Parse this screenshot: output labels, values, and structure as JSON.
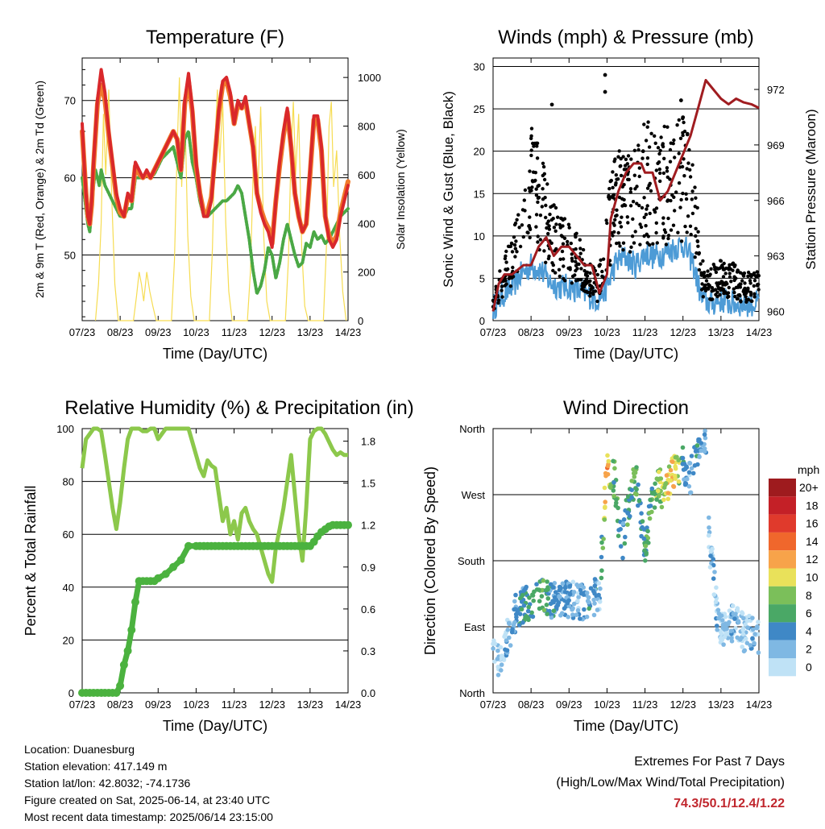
{
  "xticks": [
    "07/23",
    "08/23",
    "09/23",
    "10/23",
    "11/23",
    "12/23",
    "13/23",
    "14/23"
  ],
  "xlabel": "Time (Day/UTC)",
  "colors": {
    "temp_2m": "#d9282b",
    "temp_9m": "#f07a2b",
    "dewpoint": "#4aa845",
    "solar": "#f6dc52",
    "wind": "#4d9bd6",
    "gust": "#000000",
    "pressure": "#a01c20",
    "rh": "#8cc84b",
    "precip": "#4bb23f",
    "extremes": "#c0262d"
  },
  "footer": {
    "location": "Location: Duanesburg",
    "elevation": "Station elevation: 417.149 m",
    "latlon": "Station lat/lon: 42.8032; -74.1736",
    "created": "Figure created on Sat, 2025-06-14, at 23:40 UTC",
    "recent": "Most recent data timestamp: 2025/06/14 23:15:00"
  },
  "extremes": {
    "title": "Extremes For Past 7 Days",
    "subtitle": "(High/Low/Max Wind/Total Precipitation)",
    "values": "74.3/50.1/12.4/1.22"
  },
  "chart_data": [
    {
      "type": "line",
      "title": "Temperature (F)",
      "xlabel": "Time (Day/UTC)",
      "ylabel": "2m & 9m T (Red, Orange) & 2m Td (Green)",
      "y2label": "Solar Insolation (Yellow)",
      "ylim": [
        41.5,
        75.5
      ],
      "y2lim": [
        0,
        1080
      ],
      "yticks": [
        50,
        60,
        70
      ],
      "y2ticks": [
        0,
        200,
        400,
        600,
        800,
        1000
      ],
      "x": [
        0,
        0.05,
        0.1,
        0.15,
        0.2,
        0.25,
        0.3,
        0.35,
        0.4,
        0.45,
        0.5,
        0.6,
        0.7,
        0.8,
        0.9,
        1.0,
        1.1,
        1.2,
        1.3,
        1.4,
        1.5,
        1.6,
        1.7,
        1.8,
        1.9,
        2.0,
        2.1,
        2.2,
        2.3,
        2.4,
        2.5,
        2.6,
        2.7,
        2.8,
        2.9,
        3.0,
        3.1,
        3.2,
        3.3,
        3.4,
        3.5,
        3.6,
        3.7,
        3.8,
        3.9,
        4.0,
        4.1,
        4.2,
        4.3,
        4.4,
        4.5,
        4.6,
        4.7,
        4.8,
        4.9,
        5.0,
        5.1,
        5.2,
        5.3,
        5.4,
        5.5,
        5.6,
        5.7,
        5.8,
        5.9,
        6.0,
        6.1,
        6.2,
        6.3,
        6.4,
        6.5,
        6.6,
        6.7,
        6.8,
        6.9,
        7.0
      ],
      "series": [
        {
          "name": "2m T",
          "color": "#d9282b",
          "values": [
            67,
            62,
            58,
            55,
            54,
            57,
            62,
            66,
            70,
            72,
            74,
            71,
            66,
            62,
            58,
            56,
            55,
            58,
            57,
            62,
            61,
            60,
            61,
            60,
            61,
            62,
            63,
            64,
            65,
            66,
            65,
            61,
            70,
            73.5,
            69,
            62,
            58,
            55,
            55,
            57,
            63,
            69,
            72.5,
            73,
            71,
            67,
            70,
            69,
            70.5,
            67,
            64,
            58,
            55.5,
            54,
            53,
            51,
            57,
            62,
            66,
            69,
            64,
            58,
            55,
            53,
            54,
            61,
            68,
            68,
            64,
            55,
            52,
            51,
            52,
            55,
            57,
            59
          ]
        },
        {
          "name": "9m T",
          "color": "#f07a2b",
          "values": [
            66,
            62,
            58,
            55,
            54,
            56.5,
            61.5,
            65.5,
            69.5,
            71,
            72,
            70,
            65.5,
            61.5,
            57.5,
            55.5,
            55,
            57.5,
            57,
            61.5,
            60.5,
            60,
            60.5,
            60,
            61,
            62,
            63,
            64,
            65,
            66,
            65,
            61,
            69.5,
            72.5,
            68.5,
            61.5,
            58,
            55.5,
            55.5,
            57.5,
            63,
            68.5,
            72,
            72.5,
            70.5,
            67,
            69.5,
            69,
            70,
            67,
            64,
            58,
            56,
            54.5,
            53.5,
            51.5,
            57,
            61.5,
            65.5,
            68.5,
            64,
            58,
            55,
            53,
            54,
            60.5,
            67.5,
            67.5,
            63.5,
            55,
            52.5,
            51.5,
            52.5,
            55.5,
            57.5,
            59.5
          ]
        },
        {
          "name": "2m Td",
          "color": "#4aa845",
          "values": [
            60,
            58,
            56,
            54,
            53,
            56,
            59,
            61,
            60,
            59,
            61,
            59,
            58,
            57,
            56,
            55,
            55,
            56,
            56,
            60,
            60,
            60,
            60.5,
            60,
            60.5,
            61.5,
            62.5,
            63,
            63.5,
            64,
            62,
            60,
            65,
            66,
            62,
            60,
            57,
            55,
            55,
            55.5,
            56,
            56.5,
            57,
            57,
            57.5,
            58,
            59,
            58,
            55,
            52,
            48,
            45,
            46,
            48,
            51,
            50,
            47,
            49,
            52,
            54,
            52,
            50,
            48.5,
            49,
            51.5,
            51,
            53,
            52,
            52.5,
            51.5,
            52,
            53,
            54,
            55,
            55.5,
            56
          ]
        }
      ],
      "solar_series": {
        "name": "Solar Insolation",
        "color": "#f6dc52",
        "x": [
          0.35,
          0.43,
          0.5,
          0.56,
          0.62,
          0.7,
          0.78,
          0.86,
          0.95,
          1.35,
          1.43,
          1.5,
          1.56,
          1.62,
          1.7,
          1.78,
          1.86,
          1.95,
          2.35,
          2.43,
          2.5,
          2.56,
          2.62,
          2.7,
          2.78,
          2.86,
          2.95,
          3.35,
          3.43,
          3.5,
          3.56,
          3.62,
          3.7,
          3.78,
          3.86,
          3.95,
          4.35,
          4.43,
          4.5,
          4.56,
          4.62,
          4.7,
          4.78,
          4.86,
          4.95,
          5.35,
          5.43,
          5.5,
          5.56,
          5.62,
          5.7,
          5.78,
          5.86,
          5.95,
          6.35,
          6.43,
          6.5,
          6.56,
          6.62,
          6.7,
          6.78,
          6.86,
          6.95
        ],
        "values": [
          0,
          150,
          400,
          850,
          600,
          950,
          500,
          150,
          0,
          0,
          100,
          200,
          150,
          80,
          200,
          120,
          60,
          0,
          0,
          250,
          700,
          1000,
          550,
          900,
          350,
          100,
          0,
          0,
          300,
          750,
          950,
          650,
          900,
          400,
          120,
          0,
          0,
          200,
          600,
          800,
          500,
          880,
          350,
          80,
          0,
          0,
          250,
          700,
          900,
          600,
          850,
          300,
          60,
          0,
          0,
          300,
          800,
          900,
          550,
          700,
          350,
          120,
          0
        ]
      }
    },
    {
      "type": "scatter",
      "title": "Winds (mph) & Pressure (mb)",
      "xlabel": "Time (Day/UTC)",
      "ylabel": "Sonic Wind & Gust (Blue, Black)",
      "y2label": "Station Pressure (Maroon)",
      "ylim": [
        0,
        31
      ],
      "y2lim": [
        959.5,
        973.7
      ],
      "yticks": [
        0,
        5,
        10,
        15,
        20,
        25,
        30
      ],
      "y2ticks": [
        960,
        963,
        966,
        969,
        972
      ],
      "x": [
        0,
        0.25,
        0.5,
        0.75,
        1.0,
        1.25,
        1.5,
        1.75,
        2.0,
        2.25,
        2.5,
        2.75,
        3.0,
        3.25,
        3.5,
        3.75,
        4.0,
        4.25,
        4.5,
        4.75,
        5.0,
        5.25,
        5.5,
        5.75,
        6.0,
        6.25,
        6.5,
        6.75,
        7.0
      ],
      "series": [
        {
          "name": "Sonic Wind",
          "color": "#4d9bd6",
          "values": [
            1.5,
            3,
            4,
            5.5,
            6.5,
            6,
            4.5,
            4,
            4,
            3.5,
            3,
            2.5,
            4,
            7,
            7.5,
            6.5,
            8,
            7.5,
            8,
            8.5,
            9,
            7,
            2.5,
            2,
            2.5,
            2,
            2,
            2,
            2
          ]
        },
        {
          "name": "Gust",
          "color": "#000000",
          "values": [
            2,
            5,
            7,
            10,
            16,
            14,
            11,
            9,
            8,
            7,
            5,
            4,
            10,
            14,
            15,
            14,
            17,
            15,
            16,
            17,
            17,
            14,
            5,
            4.5,
            5,
            5,
            4,
            4,
            4
          ]
        }
      ],
      "gust_peaks": [
        {
          "x": 2.95,
          "y": 29
        },
        {
          "x": 2.95,
          "y": 27
        },
        {
          "x": 1.55,
          "y": 25.5
        },
        {
          "x": 4.95,
          "y": 26
        },
        {
          "x": 3.95,
          "y": 20
        },
        {
          "x": 5.0,
          "y": 24
        }
      ],
      "pressure_series": {
        "name": "Station Pressure",
        "color": "#a01c20",
        "x": [
          0,
          0.15,
          0.3,
          0.5,
          0.8,
          1.0,
          1.2,
          1.4,
          1.6,
          1.8,
          2.0,
          2.2,
          2.4,
          2.6,
          2.8,
          3.0,
          3.1,
          3.3,
          3.5,
          3.7,
          3.9,
          4.0,
          4.2,
          4.4,
          4.6,
          4.8,
          5.0,
          5.2,
          5.4,
          5.6,
          5.8,
          6.0,
          6.2,
          6.4,
          6.6,
          6.8,
          7.0
        ],
        "values": [
          960,
          961.5,
          962,
          962,
          962.5,
          962.5,
          963.5,
          964,
          963,
          963.5,
          963.5,
          963,
          962.5,
          962.5,
          961,
          962,
          965,
          966.5,
          967.5,
          968,
          968,
          967.5,
          967.5,
          966,
          966.5,
          967.5,
          968.5,
          969.5,
          971,
          972.5,
          972,
          971.5,
          971.2,
          971.5,
          971.3,
          971.2,
          971
        ]
      }
    },
    {
      "type": "line",
      "title": "Relative Humidity (%) & Precipitation (in)",
      "xlabel": "Time (Day/UTC)",
      "ylabel": "Percent & Total Rainfall",
      "ylim": [
        0,
        100
      ],
      "y2lim": [
        0,
        1.89
      ],
      "yticks": [
        0,
        20,
        40,
        60,
        80,
        100
      ],
      "y2ticks": [
        0.0,
        0.3,
        0.6,
        0.9,
        1.2,
        1.5,
        1.8
      ],
      "x": [
        0,
        0.1,
        0.2,
        0.3,
        0.4,
        0.5,
        0.6,
        0.7,
        0.8,
        0.9,
        1.0,
        1.1,
        1.2,
        1.3,
        1.4,
        1.5,
        1.6,
        1.7,
        1.8,
        1.9,
        2.0,
        2.2,
        2.4,
        2.6,
        2.8,
        3.0,
        3.1,
        3.2,
        3.3,
        3.4,
        3.5,
        3.6,
        3.7,
        3.8,
        3.9,
        4.0,
        4.1,
        4.2,
        4.3,
        4.4,
        4.5,
        4.6,
        4.7,
        4.8,
        4.9,
        5.0,
        5.1,
        5.2,
        5.3,
        5.4,
        5.5,
        5.6,
        5.7,
        5.8,
        5.9,
        6.0,
        6.1,
        6.2,
        6.3,
        6.4,
        6.5,
        6.6,
        6.7,
        6.8,
        6.9,
        7.0
      ],
      "series": [
        {
          "name": "Relative Humidity",
          "color": "#8cc84b",
          "values": [
            85,
            96,
            98,
            100,
            100,
            99,
            90,
            80,
            70,
            62,
            72,
            85,
            96,
            100,
            100,
            100,
            99,
            99,
            100,
            100,
            96,
            100,
            100,
            100,
            100,
            90,
            85,
            82,
            88,
            86,
            85,
            75,
            65,
            70,
            60,
            65,
            58,
            68,
            70,
            65,
            62,
            60,
            55,
            50,
            45,
            42,
            55,
            62,
            70,
            80,
            90,
            75,
            60,
            50,
            70,
            96,
            99,
            100,
            100,
            98,
            95,
            92,
            90,
            91,
            90,
            90
          ]
        },
        {
          "name": "Total Precipitation",
          "color": "#4bb23f",
          "axis": "right",
          "values": [
            0,
            0,
            0,
            0,
            0,
            0,
            0,
            0,
            0,
            0,
            0.05,
            0.2,
            0.3,
            0.45,
            0.65,
            0.8,
            0.8,
            0.8,
            0.8,
            0.8,
            0.82,
            0.85,
            0.9,
            0.95,
            1.05,
            1.05,
            1.05,
            1.05,
            1.05,
            1.05,
            1.05,
            1.05,
            1.05,
            1.05,
            1.05,
            1.05,
            1.05,
            1.05,
            1.05,
            1.05,
            1.05,
            1.05,
            1.05,
            1.05,
            1.05,
            1.05,
            1.05,
            1.05,
            1.05,
            1.05,
            1.05,
            1.05,
            1.05,
            1.05,
            1.05,
            1.05,
            1.08,
            1.12,
            1.15,
            1.17,
            1.19,
            1.2,
            1.2,
            1.2,
            1.2,
            1.2
          ]
        }
      ]
    },
    {
      "type": "scatter",
      "title": "Wind Direction",
      "xlabel": "Time (Day/UTC)",
      "ylabel": "Direction (Colored By Speed)",
      "yticks": [
        "North",
        "East",
        "South",
        "West",
        "North"
      ],
      "ylim": [
        0,
        360
      ],
      "colorbar": {
        "title": "mph",
        "labels": [
          "20+",
          "18",
          "16",
          "14",
          "12",
          "10",
          "8",
          "6",
          "4",
          "2",
          "0"
        ],
        "colors": [
          "#9e1b1e",
          "#c42027",
          "#e03a2c",
          "#f0672c",
          "#f7a34a",
          "#e9e15a",
          "#7bbf5a",
          "#4aa866",
          "#3f88c6",
          "#7fb8e3",
          "#bfe2f6"
        ]
      },
      "x": [
        0.0,
        0.2,
        0.4,
        0.6,
        0.8,
        1.0,
        1.2,
        1.4,
        1.6,
        1.8,
        2.0,
        2.2,
        2.4,
        2.6,
        2.8,
        3.0,
        3.1,
        3.2,
        3.3,
        3.4,
        3.5,
        3.6,
        3.7,
        3.8,
        3.9,
        4.0,
        4.1,
        4.2,
        4.3,
        4.4,
        4.5,
        4.6,
        4.7,
        4.8,
        4.9,
        5.0,
        5.1,
        5.2,
        5.3,
        5.4,
        5.5,
        5.6,
        5.7,
        5.8,
        5.9,
        6.0,
        6.2,
        6.4,
        6.6,
        6.8,
        7.0
      ],
      "directions": [
        60,
        40,
        80,
        110,
        120,
        125,
        130,
        130,
        125,
        128,
        127,
        126,
        124,
        128,
        135,
        310,
        300,
        290,
        230,
        200,
        240,
        260,
        290,
        280,
        230,
        190,
        230,
        260,
        275,
        280,
        265,
        275,
        300,
        305,
        300,
        310,
        300,
        290,
        320,
        330,
        340,
        345,
        200,
        160,
        110,
        90,
        90,
        100,
        80,
        85,
        70
      ],
      "speeds": [
        0,
        1,
        2,
        3,
        5,
        5,
        6,
        5,
        4,
        3,
        3,
        2,
        3,
        4,
        2,
        12,
        8,
        6,
        5,
        4,
        6,
        5,
        6,
        7,
        4,
        5,
        6,
        6,
        7,
        8,
        9,
        10,
        11,
        9,
        8,
        5,
        3,
        2,
        4,
        4,
        3,
        2,
        2,
        2,
        2,
        1,
        1,
        2,
        1,
        2,
        1
      ]
    }
  ]
}
